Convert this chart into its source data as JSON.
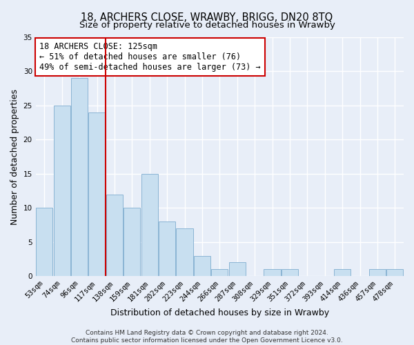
{
  "title": "18, ARCHERS CLOSE, WRAWBY, BRIGG, DN20 8TQ",
  "subtitle": "Size of property relative to detached houses in Wrawby",
  "xlabel": "Distribution of detached houses by size in Wrawby",
  "ylabel": "Number of detached properties",
  "footer_lines": [
    "Contains HM Land Registry data © Crown copyright and database right 2024.",
    "Contains public sector information licensed under the Open Government Licence v3.0."
  ],
  "bin_labels": [
    "53sqm",
    "74sqm",
    "96sqm",
    "117sqm",
    "138sqm",
    "159sqm",
    "181sqm",
    "202sqm",
    "223sqm",
    "244sqm",
    "266sqm",
    "287sqm",
    "308sqm",
    "329sqm",
    "351sqm",
    "372sqm",
    "393sqm",
    "414sqm",
    "436sqm",
    "457sqm",
    "478sqm"
  ],
  "bar_heights": [
    10,
    25,
    29,
    24,
    12,
    10,
    15,
    8,
    7,
    3,
    1,
    2,
    0,
    1,
    1,
    0,
    0,
    1,
    0,
    1,
    1
  ],
  "bar_color": "#c8dff0",
  "bar_edge_color": "#8ab4d4",
  "reference_line_x": 3.5,
  "reference_line_color": "#cc0000",
  "annotation_text": "18 ARCHERS CLOSE: 125sqm\n← 51% of detached houses are smaller (76)\n49% of semi-detached houses are larger (73) →",
  "annotation_box_color": "#ffffff",
  "annotation_box_edge_color": "#cc0000",
  "ylim": [
    0,
    35
  ],
  "yticks": [
    0,
    5,
    10,
    15,
    20,
    25,
    30,
    35
  ],
  "background_color": "#e8eef8",
  "grid_color": "#ffffff",
  "title_fontsize": 10.5,
  "subtitle_fontsize": 9.5,
  "axis_label_fontsize": 9,
  "tick_fontsize": 7.5,
  "annotation_fontsize": 8.5,
  "footer_fontsize": 6.5
}
